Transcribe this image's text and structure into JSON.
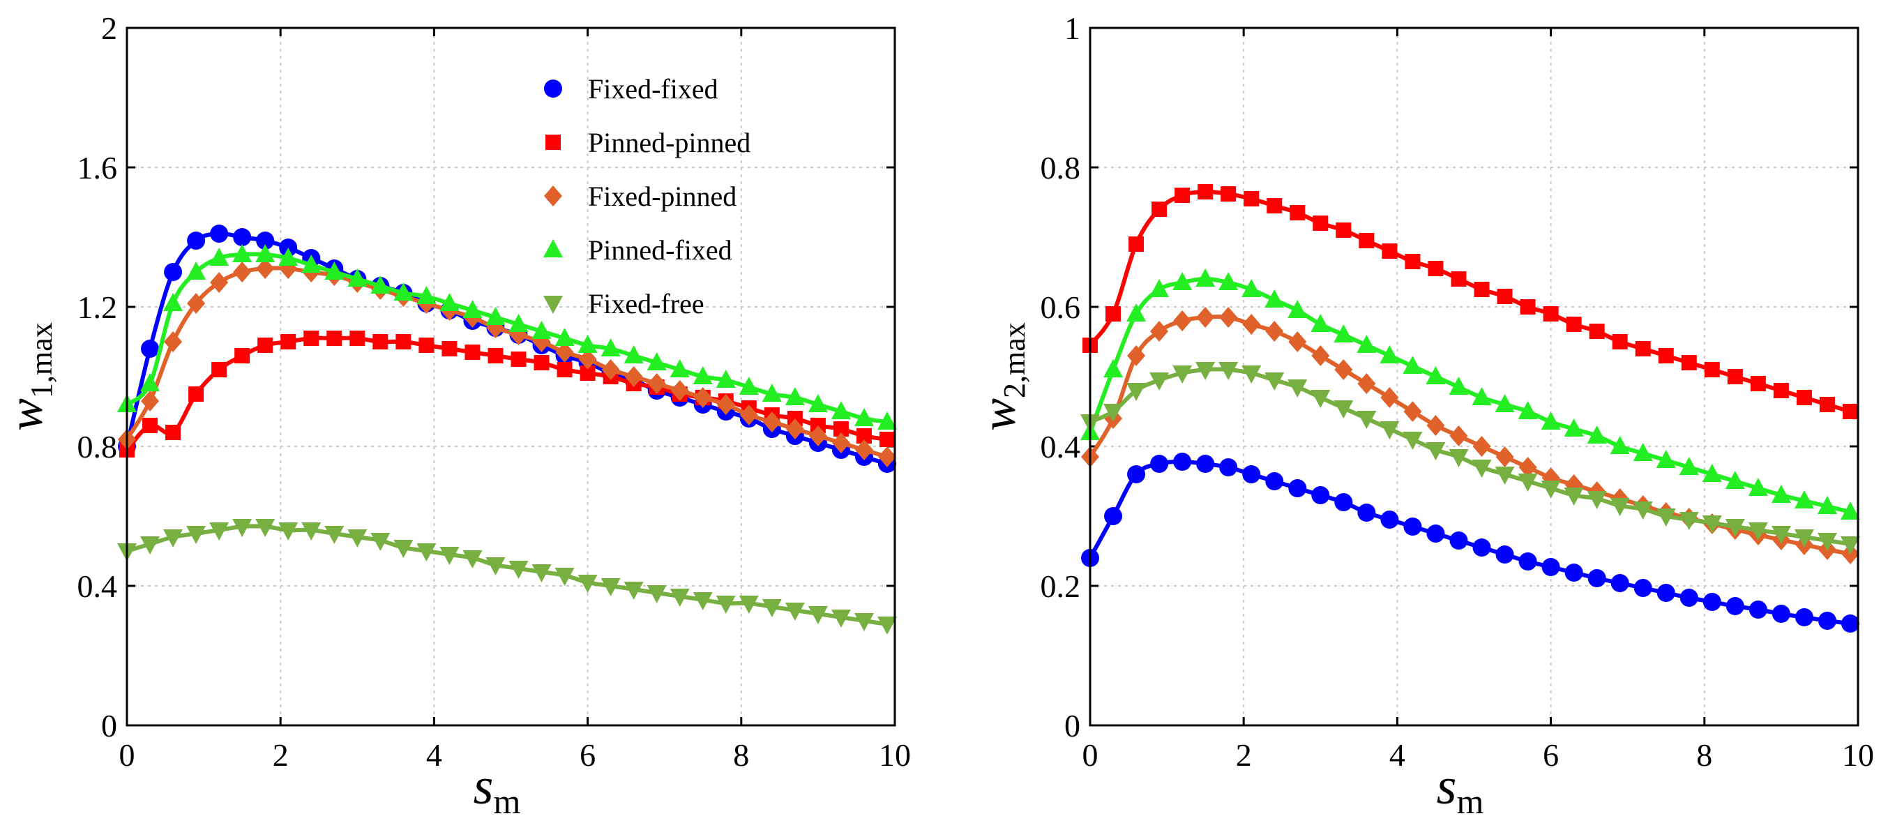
{
  "chart_data": [
    {
      "type": "line",
      "xlabel": "s",
      "xlabel_sub": "m",
      "ylabel": "w",
      "ylabel_sub_index": "1",
      "ylabel_sub_rest": ",max",
      "xlim": [
        0,
        10
      ],
      "ylim": [
        0,
        2
      ],
      "xticks": [
        "0",
        "2",
        "4",
        "6",
        "8",
        "10"
      ],
      "yticks": [
        "0",
        "0.4",
        "0.8",
        "1.2",
        "1.6",
        "2"
      ],
      "grid": true,
      "legend_position": "top-right",
      "series": [
        {
          "name": "Fixed-fixed",
          "color": "#0000ff",
          "marker": "circle",
          "x": [
            0,
            0.3,
            0.6,
            0.9,
            1.2,
            1.5,
            1.8,
            2.1,
            2.4,
            2.7,
            3.0,
            3.3,
            3.6,
            3.9,
            4.2,
            4.5,
            4.8,
            5.1,
            5.4,
            5.7,
            6.0,
            6.3,
            6.6,
            6.9,
            7.2,
            7.5,
            7.8,
            8.1,
            8.4,
            8.7,
            9.0,
            9.3,
            9.6,
            9.9
          ],
          "y": [
            0.8,
            1.08,
            1.3,
            1.39,
            1.41,
            1.4,
            1.39,
            1.37,
            1.34,
            1.31,
            1.28,
            1.26,
            1.24,
            1.21,
            1.19,
            1.16,
            1.14,
            1.12,
            1.09,
            1.06,
            1.04,
            1.01,
            0.99,
            0.96,
            0.94,
            0.92,
            0.9,
            0.88,
            0.85,
            0.83,
            0.81,
            0.79,
            0.77,
            0.75
          ]
        },
        {
          "name": "Pinned-pinned",
          "color": "#ff0000",
          "marker": "square",
          "x": [
            0,
            0.3,
            0.6,
            0.9,
            1.2,
            1.5,
            1.8,
            2.1,
            2.4,
            2.7,
            3.0,
            3.3,
            3.6,
            3.9,
            4.2,
            4.5,
            4.8,
            5.1,
            5.4,
            5.7,
            6.0,
            6.3,
            6.6,
            6.9,
            7.2,
            7.5,
            7.8,
            8.1,
            8.4,
            8.7,
            9.0,
            9.3,
            9.6,
            9.9
          ],
          "y": [
            0.79,
            0.86,
            0.84,
            0.95,
            1.02,
            1.06,
            1.09,
            1.1,
            1.11,
            1.11,
            1.11,
            1.1,
            1.1,
            1.09,
            1.08,
            1.07,
            1.06,
            1.05,
            1.04,
            1.02,
            1.01,
            1.0,
            0.98,
            0.97,
            0.95,
            0.94,
            0.93,
            0.91,
            0.89,
            0.88,
            0.86,
            0.85,
            0.83,
            0.82
          ]
        },
        {
          "name": "Fixed-pinned",
          "color": "#e0622a",
          "marker": "diamond",
          "x": [
            0,
            0.3,
            0.6,
            0.9,
            1.2,
            1.5,
            1.8,
            2.1,
            2.4,
            2.7,
            3.0,
            3.3,
            3.6,
            3.9,
            4.2,
            4.5,
            4.8,
            5.1,
            5.4,
            5.7,
            6.0,
            6.3,
            6.6,
            6.9,
            7.2,
            7.5,
            7.8,
            8.1,
            8.4,
            8.7,
            9.0,
            9.3,
            9.6,
            9.9
          ],
          "y": [
            0.82,
            0.93,
            1.1,
            1.21,
            1.27,
            1.3,
            1.31,
            1.31,
            1.3,
            1.29,
            1.27,
            1.25,
            1.23,
            1.21,
            1.19,
            1.17,
            1.14,
            1.12,
            1.1,
            1.07,
            1.05,
            1.02,
            1.0,
            0.98,
            0.96,
            0.94,
            0.92,
            0.89,
            0.87,
            0.85,
            0.83,
            0.81,
            0.79,
            0.77
          ]
        },
        {
          "name": "Pinned-fixed",
          "color": "#22ee22",
          "marker": "triangle-up",
          "x": [
            0,
            0.3,
            0.6,
            0.9,
            1.2,
            1.5,
            1.8,
            2.1,
            2.4,
            2.7,
            3.0,
            3.3,
            3.6,
            3.9,
            4.2,
            4.5,
            4.8,
            5.1,
            5.4,
            5.7,
            6.0,
            6.3,
            6.6,
            6.9,
            7.2,
            7.5,
            7.8,
            8.1,
            8.4,
            8.7,
            9.0,
            9.3,
            9.6,
            9.9
          ],
          "y": [
            0.92,
            0.98,
            1.21,
            1.3,
            1.34,
            1.35,
            1.35,
            1.34,
            1.32,
            1.3,
            1.28,
            1.26,
            1.24,
            1.23,
            1.21,
            1.19,
            1.17,
            1.15,
            1.13,
            1.11,
            1.09,
            1.08,
            1.06,
            1.04,
            1.02,
            1.0,
            0.99,
            0.97,
            0.95,
            0.94,
            0.92,
            0.9,
            0.88,
            0.87
          ]
        },
        {
          "name": "Fixed-free",
          "color": "#77b041",
          "marker": "triangle-down",
          "x": [
            0,
            0.3,
            0.6,
            0.9,
            1.2,
            1.5,
            1.8,
            2.1,
            2.4,
            2.7,
            3.0,
            3.3,
            3.6,
            3.9,
            4.2,
            4.5,
            4.8,
            5.1,
            5.4,
            5.7,
            6.0,
            6.3,
            6.6,
            6.9,
            7.2,
            7.5,
            7.8,
            8.1,
            8.4,
            8.7,
            9.0,
            9.3,
            9.6,
            9.9
          ],
          "y": [
            0.5,
            0.52,
            0.54,
            0.55,
            0.56,
            0.57,
            0.57,
            0.56,
            0.56,
            0.55,
            0.54,
            0.53,
            0.51,
            0.5,
            0.49,
            0.48,
            0.46,
            0.45,
            0.44,
            0.43,
            0.41,
            0.4,
            0.39,
            0.38,
            0.37,
            0.36,
            0.35,
            0.35,
            0.34,
            0.33,
            0.32,
            0.31,
            0.3,
            0.29
          ]
        }
      ]
    },
    {
      "type": "line",
      "xlabel": "s",
      "xlabel_sub": "m",
      "ylabel": "w",
      "ylabel_sub_index": "2",
      "ylabel_sub_rest": ",max",
      "xlim": [
        0,
        10
      ],
      "ylim": [
        0,
        1
      ],
      "xticks": [
        "0",
        "2",
        "4",
        "6",
        "8",
        "10"
      ],
      "yticks": [
        "0",
        "0.2",
        "0.4",
        "0.6",
        "0.8",
        "1"
      ],
      "grid": true,
      "legend_position": "none",
      "series": [
        {
          "name": "Fixed-fixed",
          "color": "#0000ff",
          "marker": "circle",
          "x": [
            0,
            0.3,
            0.6,
            0.9,
            1.2,
            1.5,
            1.8,
            2.1,
            2.4,
            2.7,
            3.0,
            3.3,
            3.6,
            3.9,
            4.2,
            4.5,
            4.8,
            5.1,
            5.4,
            5.7,
            6.0,
            6.3,
            6.6,
            6.9,
            7.2,
            7.5,
            7.8,
            8.1,
            8.4,
            8.7,
            9.0,
            9.3,
            9.6,
            9.9
          ],
          "y": [
            0.24,
            0.3,
            0.36,
            0.375,
            0.378,
            0.375,
            0.37,
            0.36,
            0.35,
            0.34,
            0.33,
            0.32,
            0.305,
            0.295,
            0.285,
            0.275,
            0.265,
            0.255,
            0.245,
            0.235,
            0.227,
            0.219,
            0.211,
            0.204,
            0.197,
            0.19,
            0.183,
            0.177,
            0.171,
            0.166,
            0.16,
            0.155,
            0.15,
            0.146
          ]
        },
        {
          "name": "Pinned-pinned",
          "color": "#ff0000",
          "marker": "square",
          "x": [
            0,
            0.3,
            0.6,
            0.9,
            1.2,
            1.5,
            1.8,
            2.1,
            2.4,
            2.7,
            3.0,
            3.3,
            3.6,
            3.9,
            4.2,
            4.5,
            4.8,
            5.1,
            5.4,
            5.7,
            6.0,
            6.3,
            6.6,
            6.9,
            7.2,
            7.5,
            7.8,
            8.1,
            8.4,
            8.7,
            9.0,
            9.3,
            9.6,
            9.9
          ],
          "y": [
            0.545,
            0.59,
            0.69,
            0.74,
            0.76,
            0.765,
            0.762,
            0.755,
            0.745,
            0.735,
            0.72,
            0.71,
            0.695,
            0.68,
            0.665,
            0.655,
            0.64,
            0.625,
            0.615,
            0.6,
            0.59,
            0.575,
            0.565,
            0.55,
            0.54,
            0.53,
            0.52,
            0.51,
            0.5,
            0.49,
            0.48,
            0.47,
            0.46,
            0.45
          ]
        },
        {
          "name": "Fixed-pinned",
          "color": "#e0622a",
          "marker": "diamond",
          "x": [
            0,
            0.3,
            0.6,
            0.9,
            1.2,
            1.5,
            1.8,
            2.1,
            2.4,
            2.7,
            3.0,
            3.3,
            3.6,
            3.9,
            4.2,
            4.5,
            4.8,
            5.1,
            5.4,
            5.7,
            6.0,
            6.3,
            6.6,
            6.9,
            7.2,
            7.5,
            7.8,
            8.1,
            8.4,
            8.7,
            9.0,
            9.3,
            9.6,
            9.9
          ],
          "y": [
            0.385,
            0.44,
            0.53,
            0.565,
            0.58,
            0.585,
            0.585,
            0.575,
            0.565,
            0.55,
            0.53,
            0.51,
            0.49,
            0.47,
            0.45,
            0.43,
            0.415,
            0.4,
            0.385,
            0.37,
            0.355,
            0.345,
            0.335,
            0.325,
            0.315,
            0.305,
            0.297,
            0.289,
            0.281,
            0.273,
            0.266,
            0.259,
            0.252,
            0.246
          ]
        },
        {
          "name": "Pinned-fixed",
          "color": "#22ee22",
          "marker": "triangle-up",
          "x": [
            0,
            0.3,
            0.6,
            0.9,
            1.2,
            1.5,
            1.8,
            2.1,
            2.4,
            2.7,
            3.0,
            3.3,
            3.6,
            3.9,
            4.2,
            4.5,
            4.8,
            5.1,
            5.4,
            5.7,
            6.0,
            6.3,
            6.6,
            6.9,
            7.2,
            7.5,
            7.8,
            8.1,
            8.4,
            8.7,
            9.0,
            9.3,
            9.6,
            9.9
          ],
          "y": [
            0.42,
            0.51,
            0.59,
            0.625,
            0.635,
            0.64,
            0.635,
            0.625,
            0.61,
            0.595,
            0.575,
            0.56,
            0.545,
            0.53,
            0.515,
            0.5,
            0.485,
            0.47,
            0.46,
            0.45,
            0.435,
            0.425,
            0.415,
            0.4,
            0.39,
            0.38,
            0.37,
            0.36,
            0.35,
            0.34,
            0.33,
            0.322,
            0.314,
            0.306
          ]
        },
        {
          "name": "Fixed-free",
          "color": "#77b041",
          "marker": "triangle-down",
          "x": [
            0,
            0.3,
            0.6,
            0.9,
            1.2,
            1.5,
            1.8,
            2.1,
            2.4,
            2.7,
            3.0,
            3.3,
            3.6,
            3.9,
            4.2,
            4.5,
            4.8,
            5.1,
            5.4,
            5.7,
            6.0,
            6.3,
            6.6,
            6.9,
            7.2,
            7.5,
            7.8,
            8.1,
            8.4,
            8.7,
            9.0,
            9.3,
            9.6,
            9.9
          ],
          "y": [
            0.435,
            0.45,
            0.48,
            0.495,
            0.505,
            0.51,
            0.51,
            0.505,
            0.495,
            0.485,
            0.47,
            0.455,
            0.44,
            0.425,
            0.41,
            0.395,
            0.385,
            0.37,
            0.36,
            0.35,
            0.34,
            0.33,
            0.325,
            0.315,
            0.31,
            0.3,
            0.295,
            0.29,
            0.285,
            0.28,
            0.275,
            0.27,
            0.265,
            0.26
          ]
        }
      ]
    }
  ]
}
